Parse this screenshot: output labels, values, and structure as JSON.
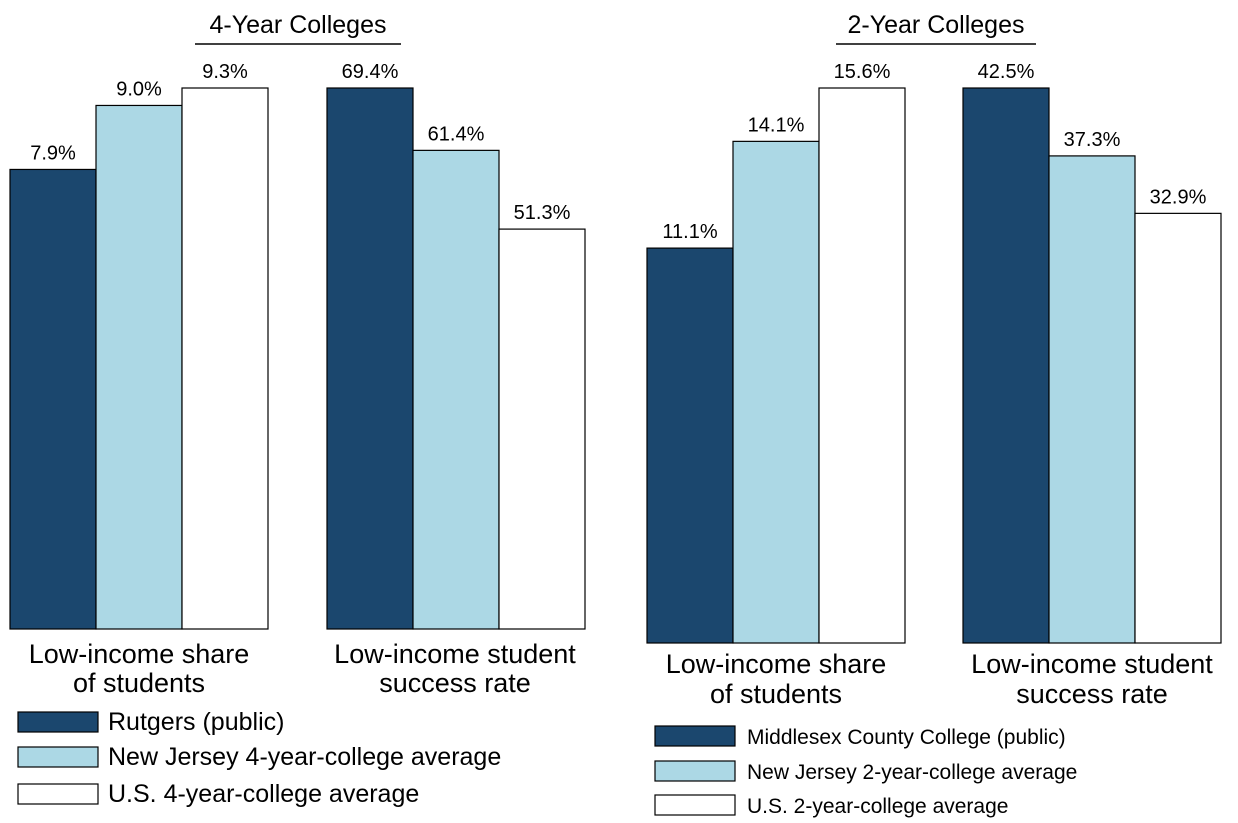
{
  "colors": {
    "dark": "#1b476e",
    "light": "#acd8e5",
    "white": "#ffffff",
    "stroke": "#000000"
  },
  "chart_data": [
    {
      "type": "bar",
      "title": "4-Year Colleges",
      "categories": [
        "Low-income share of students",
        "Low-income student success rate"
      ],
      "category_lines": [
        [
          "Low-income share",
          "of students"
        ],
        [
          "Low-income student",
          "success rate"
        ]
      ],
      "series": [
        {
          "name": "Rutgers (public)",
          "values": [
            7.9,
            69.4
          ],
          "labels": [
            "7.9%",
            "69.4%"
          ]
        },
        {
          "name": "New Jersey 4-year-college average",
          "values": [
            9.0,
            61.4
          ],
          "labels": [
            "9.0%",
            "61.4%"
          ]
        },
        {
          "name": "U.S. 4-year-college average",
          "values": [
            9.3,
            51.3
          ],
          "labels": [
            "9.3%",
            "51.3%"
          ]
        }
      ],
      "note": "each category group scaled independently (group max = full height)"
    },
    {
      "type": "bar",
      "title": "2-Year Colleges",
      "categories": [
        "Low-income share of students",
        "Low-income student success rate"
      ],
      "category_lines": [
        [
          "Low-income share",
          "of students"
        ],
        [
          "Low-income student",
          "success rate"
        ]
      ],
      "series": [
        {
          "name": "Middlesex County College (public)",
          "values": [
            11.1,
            42.5
          ],
          "labels": [
            "11.1%",
            "42.5%"
          ]
        },
        {
          "name": "New Jersey 2-year-college average",
          "values": [
            14.1,
            37.3
          ],
          "labels": [
            "14.1%",
            "37.3%"
          ]
        },
        {
          "name": "U.S. 2-year-college average",
          "values": [
            15.6,
            32.9
          ],
          "labels": [
            "15.6%",
            "32.9%"
          ]
        }
      ],
      "note": "each category group scaled independently (group max = full height)"
    }
  ]
}
